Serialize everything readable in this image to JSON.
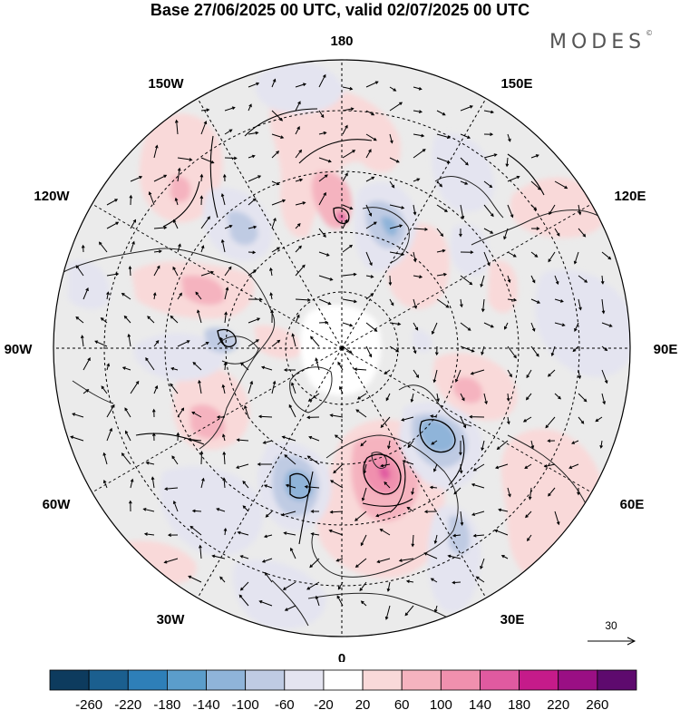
{
  "title": "Base 27/06/2025 00 UTC, valid 02/07/2025 00 UTC",
  "brand": "MODES",
  "brand_mark": "©",
  "longitude_labels": {
    "lon_180": "180",
    "lon_150W": "150W",
    "lon_150E": "150E",
    "lon_120W": "120W",
    "lon_120E": "120E",
    "lon_90W": "90W",
    "lon_90E": "90E",
    "lon_60W": "60W",
    "lon_60E": "60E",
    "lon_30W": "30W",
    "lon_30E": "30E",
    "lon_0": "0"
  },
  "vector_scale_label": "30",
  "colorbar": {
    "colors": [
      "#0d3b5e",
      "#1b5f8f",
      "#2e7fb8",
      "#5b9dcb",
      "#8fb4d9",
      "#bfcbe3",
      "#e4e4f0",
      "#ffffff",
      "#f9d9d9",
      "#f5b3bf",
      "#f090ae",
      "#e05aa0",
      "#c51b8a",
      "#9a0f84",
      "#5e0a6e"
    ],
    "tick_labels": [
      "-260",
      "-220",
      "-180",
      "-140",
      "-100",
      "-60",
      "-20",
      "20",
      "60",
      "100",
      "140",
      "180",
      "220",
      "260"
    ]
  },
  "map_colors": {
    "background": "#ebebeb",
    "coast": "#222222",
    "graticule": "#000000"
  }
}
